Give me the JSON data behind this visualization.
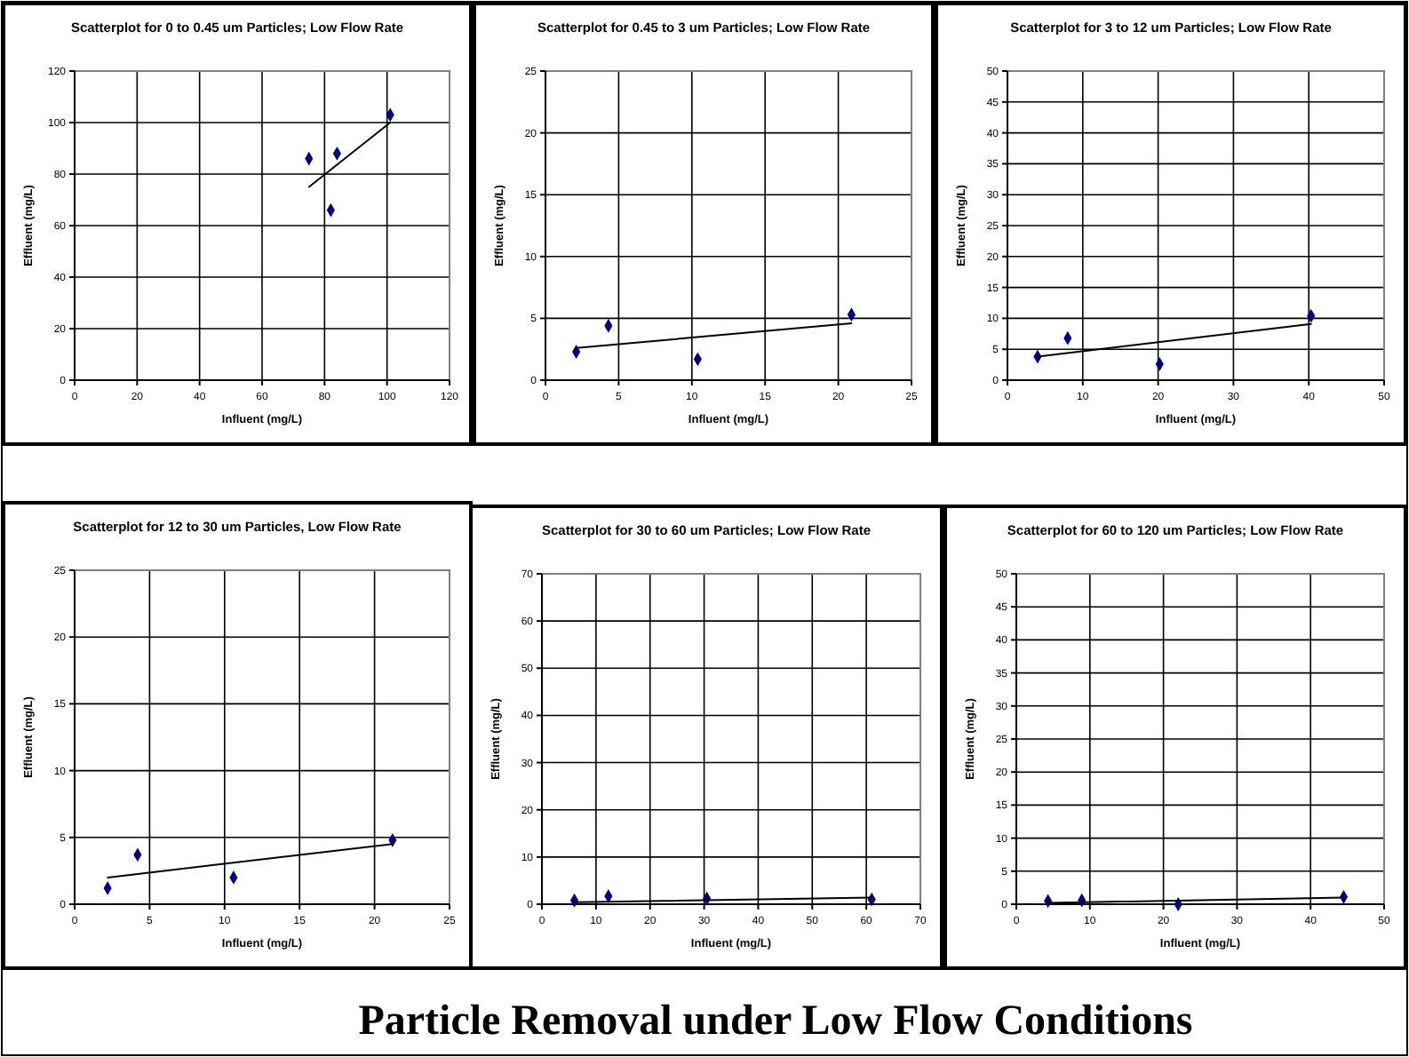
{
  "chart_data": [
    {
      "type": "scatter",
      "title": "Scatterplot for 0 to 0.45 um Particles; Low Flow Rate",
      "xlabel": "Influent (mg/L)",
      "ylabel": "Effluent (mg/L)",
      "xlim": [
        0,
        120
      ],
      "xticks": [
        0,
        20,
        40,
        60,
        80,
        100,
        120
      ],
      "ylim": [
        0,
        120
      ],
      "yticks": [
        0,
        20,
        40,
        60,
        80,
        100,
        120
      ],
      "grid": true,
      "series": [
        {
          "type": "scatter",
          "color": "#000080",
          "marker": "diamond",
          "x": [
            75,
            82,
            84,
            101
          ],
          "values": [
            86,
            66,
            88,
            103
          ]
        },
        {
          "type": "line",
          "color": "#000000",
          "marker": "none",
          "x": [
            75,
            101
          ],
          "values": [
            75,
            100
          ]
        }
      ]
    },
    {
      "type": "scatter",
      "title": "Scatterplot for 0.45 to 3 um Particles; Low Flow Rate",
      "xlabel": "Influent (mg/L)",
      "ylabel": "Effluent (mg/L)",
      "xlim": [
        0,
        25
      ],
      "xticks": [
        0,
        5,
        10,
        15,
        20,
        25
      ],
      "ylim": [
        0,
        25
      ],
      "yticks": [
        0,
        5,
        10,
        15,
        20,
        25
      ],
      "grid": true,
      "series": [
        {
          "type": "scatter",
          "color": "#000080",
          "marker": "diamond",
          "x": [
            2.1,
            4.3,
            10.4,
            20.9
          ],
          "values": [
            2.3,
            4.4,
            1.7,
            5.3
          ]
        },
        {
          "type": "line",
          "color": "#000000",
          "marker": "none",
          "x": [
            2.1,
            20.9
          ],
          "values": [
            2.6,
            4.6
          ]
        }
      ]
    },
    {
      "type": "scatter",
      "title": "Scatterplot for 3 to 12 um Particles; Low Flow Rate",
      "xlabel": "Influent (mg/L)",
      "ylabel": "Effluent (mg/L)",
      "xlim": [
        0,
        50
      ],
      "xticks": [
        0,
        10,
        20,
        30,
        40,
        50
      ],
      "ylim": [
        0,
        50
      ],
      "yticks": [
        0,
        5,
        10,
        15,
        20,
        25,
        30,
        35,
        40,
        45,
        50
      ],
      "grid": true,
      "series": [
        {
          "type": "scatter",
          "color": "#000080",
          "marker": "diamond",
          "x": [
            4,
            8,
            20.2,
            40.3
          ],
          "values": [
            3.8,
            6.8,
            2.6,
            10.4
          ]
        },
        {
          "type": "line",
          "color": "#000000",
          "marker": "none",
          "x": [
            4,
            40.3
          ],
          "values": [
            3.8,
            9.1
          ]
        }
      ]
    },
    {
      "type": "scatter",
      "title": "Scatterplot for 12 to 30 um Particles, Low Flow Rate",
      "xlabel": "Influent (mg/L)",
      "ylabel": "Effluent (mg/L)",
      "xlim": [
        0,
        25
      ],
      "xticks": [
        0,
        5,
        10,
        15,
        20,
        25
      ],
      "ylim": [
        0,
        25
      ],
      "yticks": [
        0,
        5,
        10,
        15,
        20,
        25
      ],
      "grid": true,
      "series": [
        {
          "type": "scatter",
          "color": "#000080",
          "marker": "diamond",
          "x": [
            2.2,
            4.2,
            10.6,
            21.2
          ],
          "values": [
            1.2,
            3.7,
            2.0,
            4.8
          ]
        },
        {
          "type": "line",
          "color": "#000000",
          "marker": "none",
          "x": [
            2.2,
            21.2
          ],
          "values": [
            2.0,
            4.5
          ]
        }
      ]
    },
    {
      "type": "scatter",
      "title": "Scatterplot for 30 to 60 um Particles; Low Flow Rate",
      "xlabel": "Influent (mg/L)",
      "ylabel": "Effluent (mg/L)",
      "xlim": [
        0,
        70
      ],
      "xticks": [
        0,
        10,
        20,
        30,
        40,
        50,
        60,
        70
      ],
      "ylim": [
        0,
        70
      ],
      "yticks": [
        0,
        10,
        20,
        30,
        40,
        50,
        60,
        70
      ],
      "grid": true,
      "series": [
        {
          "type": "scatter",
          "color": "#000080",
          "marker": "diamond",
          "x": [
            6,
            12.3,
            30.5,
            61
          ],
          "values": [
            0.8,
            1.7,
            1.2,
            1.0
          ]
        },
        {
          "type": "line",
          "color": "#000000",
          "marker": "none",
          "x": [
            6,
            61
          ],
          "values": [
            0.4,
            1.4
          ]
        }
      ]
    },
    {
      "type": "scatter",
      "title": "Scatterplot for 60 to 120 um Particles; Low Flow Rate",
      "xlabel": "Influent (mg/L)",
      "ylabel": "Effluent (mg/L)",
      "xlim": [
        0,
        50
      ],
      "xticks": [
        0,
        10,
        20,
        30,
        40,
        50
      ],
      "ylim": [
        0,
        50
      ],
      "yticks": [
        0,
        5,
        10,
        15,
        20,
        25,
        30,
        35,
        40,
        45,
        50
      ],
      "grid": true,
      "series": [
        {
          "type": "scatter",
          "color": "#000080",
          "marker": "diamond",
          "x": [
            4.3,
            8.9,
            22,
            44.5
          ],
          "values": [
            0.5,
            0.6,
            0.0,
            1.1
          ]
        },
        {
          "type": "line",
          "color": "#000000",
          "marker": "none",
          "x": [
            4.3,
            44.5
          ],
          "values": [
            0.2,
            1.0
          ]
        }
      ]
    },
    {
      "type": "other",
      "title": "Particle Removal under Low Flow Conditions"
    }
  ]
}
